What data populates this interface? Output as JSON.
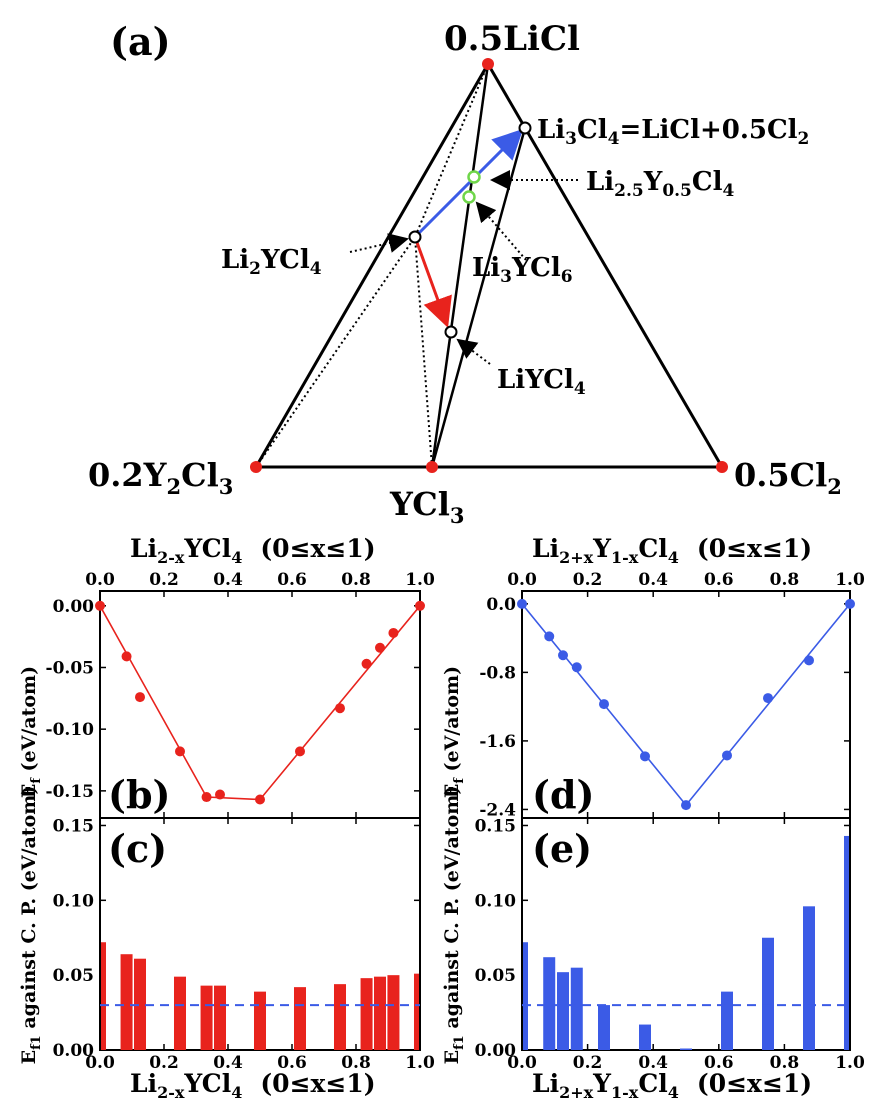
{
  "triangle": {
    "panel_label": "(a)",
    "vertex_top": "0.5LiCl",
    "vertex_left_main": "0.2Y",
    "vertex_left_sub": "2",
    "vertex_left_main2": "Cl",
    "vertex_left_sub2": "3",
    "vertex_right": "0.5Cl",
    "vertex_right_sub": "2",
    "vertex_bottom": "YCl",
    "vertex_bottom_sub": "3",
    "label_li3cl4": [
      "Li",
      "3",
      "Cl",
      "4",
      "=LiCl+0.5Cl",
      "2"
    ],
    "label_li25": [
      "Li",
      "2.5",
      "Y",
      "0.5",
      "Cl",
      "4"
    ],
    "label_li2ycl4": [
      "Li",
      "2",
      "YCl",
      "4"
    ],
    "label_li3ycl6": [
      "Li",
      "3",
      "YCl",
      "6"
    ],
    "label_liycl4": [
      "LiYCl",
      "4"
    ],
    "colors": {
      "red": "#e8231d",
      "blue": "#3b5be6",
      "green": "#6fd64a"
    }
  },
  "left_title": [
    "Li",
    "2-x",
    "YCl",
    "4",
    "(0≤x≤1)"
  ],
  "right_title": [
    "Li",
    "2+x",
    "Y",
    "1-x",
    "Cl",
    "4",
    "(0≤x≤1)"
  ],
  "ylabel_ef": [
    "E",
    "f",
    " (eV/atom)"
  ],
  "ylabel_ef1": [
    "E",
    "f1",
    " against C. P. (eV/atom)"
  ],
  "chart_data": [
    {
      "panel": "(b)",
      "type": "scatter",
      "color": "#e8231d",
      "xlim": [
        0,
        1
      ],
      "ylim": [
        -0.172,
        0.012
      ],
      "xticks": [
        "0.0",
        "0.2",
        "0.4",
        "0.6",
        "0.8",
        "1.0"
      ],
      "yticks": [
        "0.00",
        "-0.05",
        "-0.10",
        "-0.15"
      ],
      "x": [
        0,
        0.083,
        0.125,
        0.25,
        0.333,
        0.375,
        0.5,
        0.625,
        0.75,
        0.833,
        0.875,
        0.917,
        1.0
      ],
      "y": [
        0,
        -0.041,
        -0.074,
        -0.118,
        -0.155,
        -0.153,
        -0.157,
        -0.118,
        -0.083,
        -0.047,
        -0.034,
        -0.022,
        0
      ],
      "hull_x": [
        0,
        0.333,
        0.5,
        1.0
      ],
      "hull_y": [
        0,
        -0.155,
        -0.157,
        0
      ]
    },
    {
      "panel": "(c)",
      "type": "bar",
      "color": "#e8231d",
      "xlim": [
        0,
        1
      ],
      "ylim": [
        0,
        0.155
      ],
      "xticks": [
        "0.0",
        "0.2",
        "0.4",
        "0.6",
        "0.8",
        "1.0"
      ],
      "yticks": [
        "0.00",
        "0.05",
        "0.10",
        "0.15"
      ],
      "x": [
        0,
        0.083,
        0.125,
        0.25,
        0.333,
        0.375,
        0.5,
        0.625,
        0.75,
        0.833,
        0.875,
        0.917,
        1.0
      ],
      "values": [
        0.072,
        0.064,
        0.061,
        0.049,
        0.043,
        0.043,
        0.039,
        0.042,
        0.044,
        0.048,
        0.049,
        0.05,
        0.051
      ],
      "threshold": 0.03
    },
    {
      "panel": "(d)",
      "type": "scatter",
      "color": "#3b5be6",
      "xlim": [
        0,
        1
      ],
      "ylim": [
        -2.5,
        0.15
      ],
      "xticks": [
        "0.0",
        "0.2",
        "0.4",
        "0.6",
        "0.8",
        "1.0"
      ],
      "yticks": [
        "0.0",
        "-0.8",
        "-1.6",
        "-2.4"
      ],
      "x": [
        0,
        0.083,
        0.125,
        0.167,
        0.25,
        0.375,
        0.5,
        0.625,
        0.75,
        0.875,
        1.0
      ],
      "y": [
        0,
        -0.38,
        -0.6,
        -0.74,
        -1.17,
        -1.78,
        -2.35,
        -1.77,
        -1.1,
        -0.66,
        0
      ],
      "hull_x": [
        0,
        0.5,
        1.0
      ],
      "hull_y": [
        0,
        -2.35,
        0
      ]
    },
    {
      "panel": "(e)",
      "type": "bar",
      "color": "#3b5be6",
      "xlim": [
        0,
        1
      ],
      "ylim": [
        0,
        0.155
      ],
      "xticks": [
        "0.0",
        "0.2",
        "0.4",
        "0.6",
        "0.8",
        "1.0"
      ],
      "yticks": [
        "0.00",
        "0.05",
        "0.10",
        "0.15"
      ],
      "x": [
        0,
        0.083,
        0.125,
        0.167,
        0.25,
        0.375,
        0.5,
        0.625,
        0.75,
        0.875,
        1.0
      ],
      "values": [
        0.072,
        0.062,
        0.052,
        0.055,
        0.03,
        0.017,
        0.001,
        0.039,
        0.075,
        0.096,
        0.143
      ],
      "threshold": 0.03
    }
  ]
}
